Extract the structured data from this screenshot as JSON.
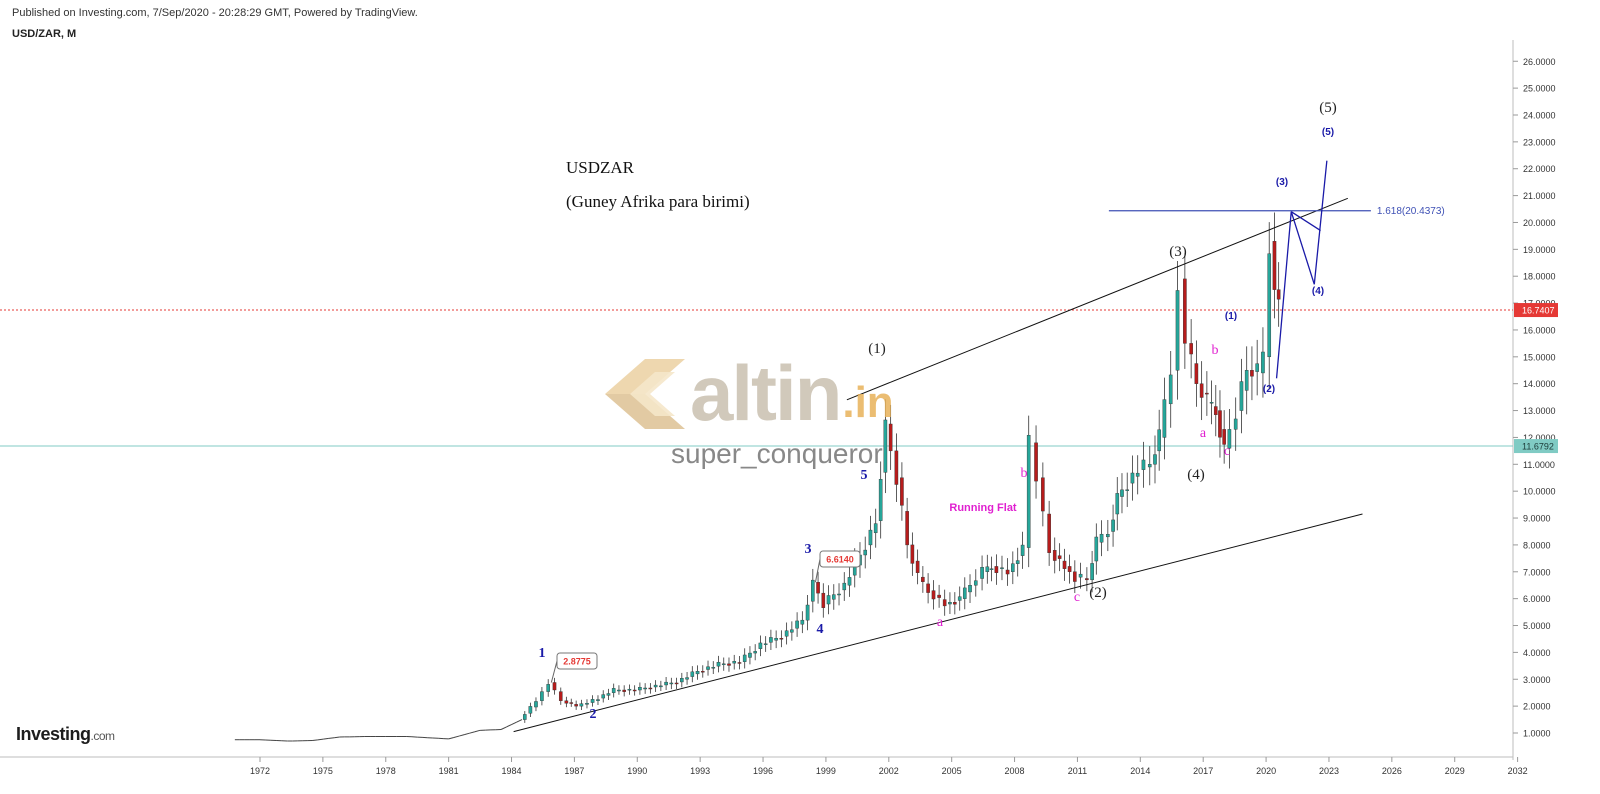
{
  "header": {
    "published": "Published on Investing.com, 7/Sep/2020 - 20:28:29 GMT, Powered by TradingView.",
    "symbol": "USD/ZAR, M"
  },
  "brand": {
    "name": "Investing",
    "suffix": ".com"
  },
  "watermark": {
    "logo_word": "altin",
    "logo_tld": ".in",
    "user": "super_conqueror"
  },
  "note": {
    "title": "USDZAR",
    "subtitle": "(Guney Afrika para birimi)"
  },
  "colors": {
    "up": "#26a69a",
    "down": "#b71c1c",
    "wave_primary": "#1a1aa8",
    "wave_corr": "#e020d0",
    "wave_major": "#222222",
    "last_price": "#e53935",
    "hline": "#80cbc4",
    "fib": "#3f51b5"
  },
  "chart_data": {
    "type": "line",
    "title": "USD/ZAR, M",
    "xlabel": "",
    "ylabel": "",
    "x_ticks": [
      "1972",
      "1975",
      "1978",
      "1981",
      "1984",
      "1987",
      "1990",
      "1993",
      "1996",
      "1999",
      "2002",
      "2005",
      "2008",
      "2011",
      "2014",
      "2017",
      "2020",
      "2023",
      "2026",
      "2029",
      "2032"
    ],
    "y_ticks": [
      "1.0000",
      "2.0000",
      "3.0000",
      "4.0000",
      "5.0000",
      "6.0000",
      "7.0000",
      "8.0000",
      "9.0000",
      "10.0000",
      "11.0000",
      "12.0000",
      "13.0000",
      "14.0000",
      "15.0000",
      "16.0000",
      "17.0000",
      "18.0000",
      "19.0000",
      "20.0000",
      "21.0000",
      "22.0000",
      "23.0000",
      "24.0000",
      "25.0000",
      "26.0000"
    ],
    "ylim": [
      0.5,
      26.5
    ],
    "xlim": [
      1969.0,
      2032.2
    ],
    "grid": false,
    "series": [
      {
        "name": "",
        "x": [
          1970.8,
          1972.0,
          1973.3,
          1974.5,
          1975.8,
          1977.0,
          1979.0,
          1981.0,
          1982.5,
          1983.5,
          1984.5,
          1985.3,
          1985.9,
          1986.5,
          1987.2,
          1988.0,
          1989.0,
          1990.0,
          1991.0,
          1992.0,
          1993.0,
          1994.0,
          1995.0,
          1996.0,
          1997.0,
          1998.0,
          1998.5,
          1999.0,
          2000.0,
          2001.0,
          2001.5,
          2001.95,
          2002.5,
          2003.0,
          2003.5,
          2004.0,
          2004.8,
          2005.5,
          2006.0,
          2006.6,
          2007.0,
          2007.8,
          2008.5,
          2008.85,
          2009.2,
          2009.8,
          2010.5,
          2011.0,
          2011.6,
          2012.0,
          2012.6,
          2013.0,
          2014.0,
          2014.6,
          2015.0,
          2015.6,
          2015.95,
          2016.3,
          2016.8,
          2017.3,
          2017.7,
          2018.1,
          2018.7,
          2019.2,
          2019.7,
          2020.0,
          2020.3,
          2020.5,
          2020.7
        ],
        "y": [
          0.75,
          0.75,
          0.7,
          0.72,
          0.85,
          0.87,
          0.87,
          0.78,
          1.1,
          1.13,
          1.5,
          2.2,
          2.88,
          2.2,
          2.0,
          2.2,
          2.6,
          2.6,
          2.75,
          2.9,
          3.3,
          3.55,
          3.65,
          4.3,
          4.6,
          5.2,
          6.61,
          5.8,
          6.5,
          8.0,
          8.9,
          12.5,
          10.5,
          8.0,
          6.8,
          6.3,
          5.8,
          6.0,
          6.5,
          7.0,
          7.2,
          7.0,
          7.9,
          11.8,
          10.5,
          7.8,
          7.2,
          6.8,
          6.7,
          8.1,
          8.5,
          9.8,
          10.8,
          11.0,
          12.0,
          14.5,
          17.9,
          15.5,
          14.0,
          13.3,
          13.0,
          11.6,
          13.0,
          14.5,
          14.4,
          15.0,
          19.3,
          17.5,
          16.74
        ]
      }
    ],
    "last_price": "16.7407",
    "hline_value": "11.6792",
    "hline_value_num": 11.6792,
    "fib_level": "1.618(20.4373)",
    "fib_level_num": 20.4373,
    "callouts": [
      "2.8775",
      "6.6140"
    ],
    "annotations": {
      "blue": [
        "1",
        "2",
        "3",
        "4",
        "5"
      ],
      "black": [
        "(1)",
        "(2)",
        "(3)",
        "(4)",
        "(5)"
      ],
      "magenta": [
        "a",
        "b",
        "c",
        "a",
        "b",
        "c"
      ],
      "projection": [
        "(1)",
        "(2)",
        "(3)",
        "(4)",
        "(5)"
      ],
      "running_flat": "Running Flat"
    }
  }
}
